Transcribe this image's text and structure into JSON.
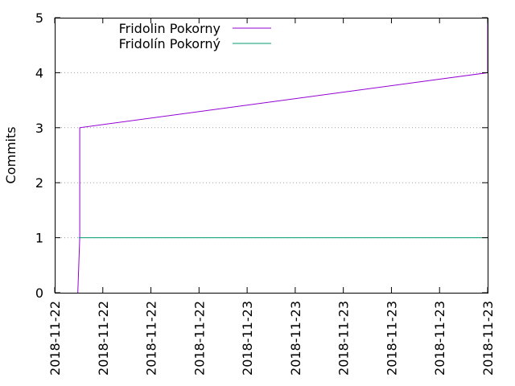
{
  "chart_data": {
    "type": "line",
    "title": "",
    "xlabel": "",
    "ylabel": "Commits",
    "x_tick_labels": [
      "2018-11-22",
      "2018-11-22",
      "2018-11-22",
      "2018-11-22",
      "2018-11-23",
      "2018-11-23",
      "2018-11-23",
      "2018-11-23",
      "2018-11-23",
      "2018-11-23"
    ],
    "y_ticks": [
      0,
      1,
      2,
      3,
      4,
      5
    ],
    "ylim": [
      0,
      5
    ],
    "grid": "horizontal dotted lines at y ticks",
    "legend_position": "top-left",
    "series": [
      {
        "name": "Fridolin Pokorny",
        "color": "#9400d3",
        "points": [
          {
            "tick_pos": 0.48,
            "y": 0
          },
          {
            "tick_pos": 0.52,
            "y": 1
          },
          {
            "tick_pos": 0.52,
            "y": 3
          },
          {
            "tick_pos": 9.0,
            "y": 4
          },
          {
            "tick_pos": 9.0,
            "y": 5
          }
        ]
      },
      {
        "name": "Fridolín Pokorný",
        "color": "#009e73",
        "points": [
          {
            "tick_pos": 0.5,
            "y": 1
          },
          {
            "tick_pos": 9.0,
            "y": 1
          }
        ]
      }
    ]
  }
}
